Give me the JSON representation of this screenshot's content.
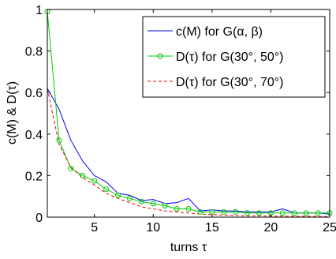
{
  "chart_data": {
    "type": "line",
    "title": "",
    "xlabel": "turns τ",
    "ylabel": "c(M) & D(τ)",
    "xlim": [
      1,
      25
    ],
    "ylim": [
      0,
      1
    ],
    "xticks": [
      5,
      10,
      15,
      20,
      25
    ],
    "yticks": [
      0,
      0.2,
      0.4,
      0.6,
      0.8,
      1
    ],
    "xtick_labels": [
      "5",
      "10",
      "15",
      "20",
      "25"
    ],
    "ytick_labels": [
      "0",
      "0.2",
      "0.4",
      "0.6",
      "0.8",
      "1"
    ],
    "grid": false,
    "legend_position": "top-right",
    "series": [
      {
        "name": "c(M) for G(α, β)",
        "color": "#0000ff",
        "style": "solid",
        "marker": "none",
        "x": [
          1,
          2,
          3,
          4,
          5,
          6,
          7,
          8,
          9,
          10,
          11,
          12,
          13,
          14,
          15,
          16,
          17,
          18,
          19,
          20,
          21,
          22,
          23,
          24,
          25
        ],
        "y": [
          0.62,
          0.52,
          0.37,
          0.27,
          0.2,
          0.17,
          0.115,
          0.105,
          0.08,
          0.085,
          0.065,
          0.07,
          0.09,
          0.03,
          0.035,
          0.03,
          0.03,
          0.025,
          0.025,
          0.025,
          0.04,
          0.02,
          0.02,
          0.02,
          0.015
        ]
      },
      {
        "name": "D(τ) for G(30°, 50°)",
        "color": "#00cc00",
        "style": "solid",
        "marker": "circle",
        "x": [
          1,
          2,
          3,
          4,
          5,
          6,
          7,
          8,
          9,
          10,
          11,
          12,
          13,
          14,
          15,
          16,
          17,
          18,
          19,
          20,
          21,
          22,
          23,
          24,
          25
        ],
        "y": [
          0.99,
          0.37,
          0.235,
          0.2,
          0.175,
          0.135,
          0.105,
          0.09,
          0.075,
          0.065,
          0.055,
          0.04,
          0.04,
          0.025,
          0.025,
          0.025,
          0.025,
          0.02,
          0.02,
          0.02,
          0.02,
          0.02,
          0.02,
          0.02,
          0.02
        ]
      },
      {
        "name": "D(τ) for G(30°, 70°)",
        "color": "#ff0000",
        "style": "dashed",
        "marker": "none",
        "x": [
          1,
          2,
          3,
          4,
          5,
          6,
          7,
          8,
          9,
          10,
          11,
          12,
          13,
          14,
          15,
          16,
          17,
          18,
          19,
          20,
          21,
          22,
          23,
          24,
          25
        ],
        "y": [
          0.62,
          0.35,
          0.24,
          0.19,
          0.155,
          0.115,
          0.09,
          0.07,
          0.05,
          0.04,
          0.03,
          0.025,
          0.02,
          0.015,
          0.012,
          0.01,
          0.008,
          0.007,
          0.006,
          0.005,
          0.005,
          0.004,
          0.004,
          0.003,
          0.003
        ]
      }
    ]
  }
}
